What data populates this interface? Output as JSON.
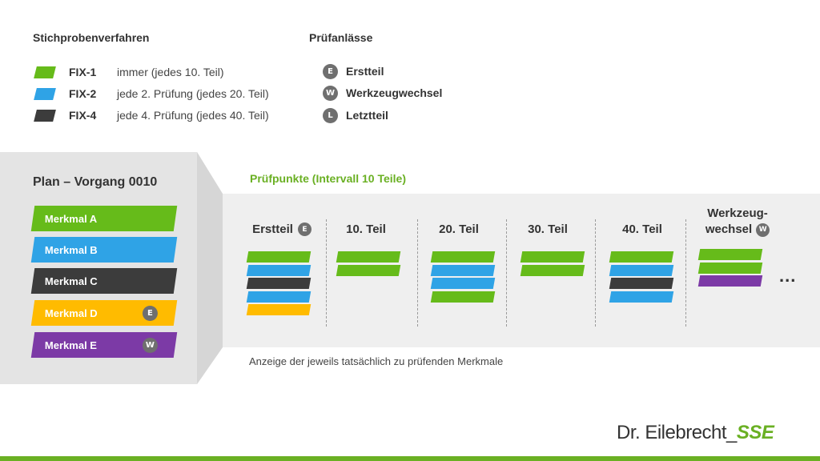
{
  "legend": {
    "heading": "Stichprobenverfahren",
    "items": [
      {
        "code": "FIX-1",
        "desc": "immer (jedes 10. Teil)",
        "color": "#66bb1a"
      },
      {
        "code": "FIX-2",
        "desc": "jede 2. Prüfung (jedes 20. Teil)",
        "color": "#2fa3e6"
      },
      {
        "code": "FIX-4",
        "desc": "jede 4. Prüfung (jedes 40. Teil)",
        "color": "#3c3c3c"
      }
    ]
  },
  "occasions": {
    "heading": "Prüfanlässe",
    "items": [
      {
        "badge": "E",
        "label": "Erstteil"
      },
      {
        "badge": "W",
        "label": "Werkzeugwechsel"
      },
      {
        "badge": "L",
        "label": "Letztteil"
      }
    ]
  },
  "plan": {
    "title": "Plan – Vorgang 0010",
    "features": [
      {
        "label": "Merkmal A",
        "color": "#66bb1a",
        "badge": ""
      },
      {
        "label": "Merkmal B",
        "color": "#2fa3e6",
        "badge": ""
      },
      {
        "label": "Merkmal C",
        "color": "#3c3c3c",
        "badge": ""
      },
      {
        "label": "Merkmal D",
        "color": "#ffbb00",
        "badge": "E"
      },
      {
        "label": "Merkmal E",
        "color": "#7c3aa6",
        "badge": "W"
      }
    ]
  },
  "checkpoints": {
    "title": "Prüfpunkte (Intervall 10 Teile)",
    "columns": [
      {
        "label": "Erstteil",
        "badge": "E",
        "bars": [
          "#66bb1a",
          "#2fa3e6",
          "#3c3c3c",
          "#2fa3e6",
          "#ffbb00"
        ]
      },
      {
        "label": "10. Teil",
        "badge": "",
        "bars": [
          "#66bb1a",
          "#66bb1a"
        ]
      },
      {
        "label": "20. Teil",
        "badge": "",
        "bars": [
          "#66bb1a",
          "#2fa3e6",
          "#2fa3e6",
          "#66bb1a"
        ]
      },
      {
        "label": "30. Teil",
        "badge": "",
        "bars": [
          "#66bb1a",
          "#66bb1a"
        ]
      },
      {
        "label": "40. Teil",
        "badge": "",
        "bars": [
          "#66bb1a",
          "#2fa3e6",
          "#3c3c3c",
          "#2fa3e6"
        ]
      },
      {
        "label_line1": "Werkzeug-",
        "label_line2": "wechsel",
        "badge": "W",
        "bars": [
          "#66bb1a",
          "#66bb1a",
          "#7c3aa6"
        ]
      }
    ],
    "more": "...",
    "caption": "Anzeige der jeweils tatsächlich zu prüfenden Merkmale"
  },
  "brand": {
    "name": "Dr. Eilebrecht_",
    "suffix": "SSE",
    "accent": "#6ab023"
  }
}
